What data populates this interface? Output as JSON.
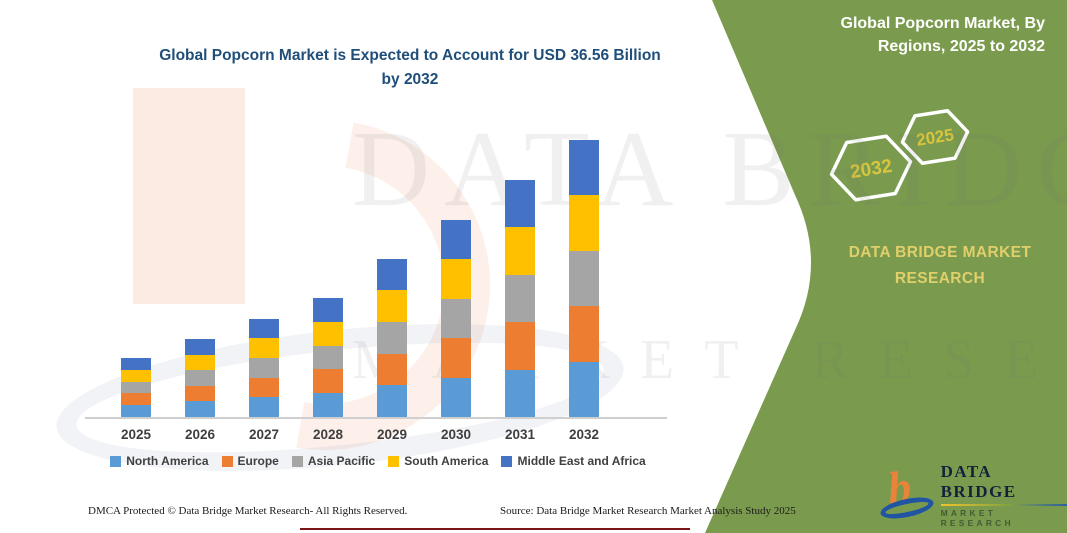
{
  "page": {
    "chart_title": "Global Popcorn Market is Expected to Account for USD 36.56 Billion by 2032",
    "footer_left": "DMCA Protected © Data Bridge Market Research-  All Rights Reserved.",
    "footer_right": "Source: Data Bridge Market Research  Market Analysis Study 2025"
  },
  "watermark": {
    "line1": "DATA BRIDGE",
    "line2": "MARKET RESEARCH"
  },
  "panel": {
    "title": "Global Popcorn Market, By Regions, 2025 to 2032",
    "hexagon_left_label": "2032",
    "hexagon_right_label": "2025",
    "brand_text": "DATA BRIDGE MARKET RESEARCH",
    "background_color": "#7a9b4e",
    "gold_color": "#d8c53e",
    "logo": {
      "name": "DATA BRIDGE",
      "subtitle": "MARKET RESEARCH"
    }
  },
  "chart_data": {
    "type": "bar",
    "stacked": true,
    "title": "Global Popcorn Market is Expected to Account for USD 36.56 Billion by 2032",
    "units": "USD billion",
    "categories": [
      "2025",
      "2026",
      "2027",
      "2028",
      "2029",
      "2030",
      "2031",
      "2032"
    ],
    "series": [
      {
        "name": "North America",
        "color": "#5B9BD5",
        "values": [
          1.56,
          2.06,
          2.6,
          3.14,
          4.18,
          5.22,
          6.26,
          7.31
        ]
      },
      {
        "name": "Europe",
        "color": "#ED7D31",
        "values": [
          1.56,
          2.06,
          2.6,
          3.14,
          4.18,
          5.22,
          6.26,
          7.31
        ]
      },
      {
        "name": "Asia Pacific",
        "color": "#A5A5A5",
        "values": [
          1.56,
          2.06,
          2.6,
          3.14,
          4.18,
          5.22,
          6.26,
          7.31
        ]
      },
      {
        "name": "South America",
        "color": "#FFC000",
        "values": [
          1.56,
          2.06,
          2.6,
          3.14,
          4.18,
          5.22,
          6.26,
          7.31
        ]
      },
      {
        "name": "Middle East and Africa",
        "color": "#4472C4",
        "values": [
          1.56,
          2.06,
          2.6,
          3.14,
          4.18,
          5.22,
          6.26,
          7.31
        ]
      }
    ],
    "totals": [
      7.8,
      10.3,
      13.0,
      15.7,
      20.9,
      26.1,
      31.3,
      36.56
    ],
    "ylim": [
      0,
      36.56
    ],
    "grid": false,
    "y_axis_visible": false,
    "legend_position": "bottom"
  }
}
